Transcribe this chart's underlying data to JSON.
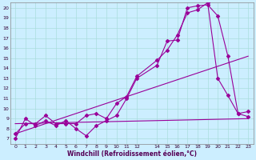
{
  "xlabel": "Windchill (Refroidissement éolien,°C)",
  "bg_color": "#cceeff",
  "grid_color": "#aadddd",
  "line_color": "#990099",
  "xlim": [
    -0.5,
    23.5
  ],
  "ylim": [
    6.5,
    20.5
  ],
  "xticks": [
    0,
    1,
    2,
    3,
    4,
    5,
    6,
    7,
    8,
    9,
    10,
    11,
    12,
    14,
    15,
    16,
    17,
    18,
    19,
    20,
    21,
    22,
    23
  ],
  "yticks": [
    7,
    8,
    9,
    10,
    11,
    12,
    13,
    14,
    15,
    16,
    17,
    18,
    19,
    20
  ],
  "series1_x": [
    0,
    1,
    2,
    3,
    4,
    5,
    6,
    7,
    8,
    9,
    10,
    11,
    12,
    14,
    15,
    16,
    17,
    18,
    19,
    20,
    21,
    22,
    23
  ],
  "series1_y": [
    7.0,
    9.0,
    8.3,
    8.8,
    8.3,
    8.8,
    8.0,
    7.3,
    8.3,
    8.8,
    9.3,
    11.0,
    13.0,
    14.3,
    16.7,
    16.8,
    20.0,
    20.2,
    20.3,
    19.2,
    15.2,
    9.5,
    9.2
  ],
  "series2_x": [
    0,
    1,
    2,
    3,
    4,
    5,
    6,
    7,
    8,
    9,
    10,
    11,
    12,
    14,
    15,
    16,
    17,
    18,
    19,
    20,
    21,
    22,
    23
  ],
  "series2_y": [
    7.5,
    8.5,
    8.5,
    9.3,
    8.5,
    8.5,
    8.5,
    9.3,
    9.5,
    9.0,
    10.5,
    11.2,
    13.2,
    14.8,
    15.8,
    17.3,
    19.5,
    19.8,
    20.5,
    13.0,
    11.3,
    9.5,
    9.7
  ],
  "line1_x": [
    0,
    23
  ],
  "line1_y": [
    7.5,
    15.2
  ],
  "line2_x": [
    0,
    23
  ],
  "line2_y": [
    8.5,
    9.0
  ]
}
